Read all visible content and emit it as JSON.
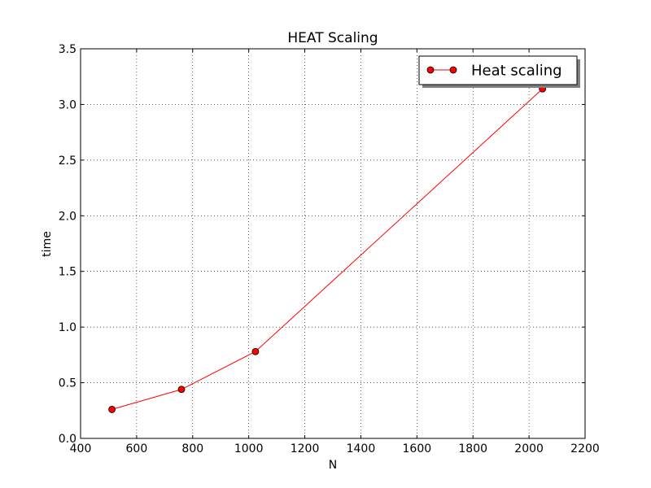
{
  "chart_data": {
    "type": "line",
    "title": "HEAT Scaling",
    "xlabel": "N",
    "ylabel": "time",
    "xlim": [
      400,
      2200
    ],
    "ylim": [
      0,
      3.5
    ],
    "x_ticks": [
      400,
      600,
      800,
      1000,
      1200,
      1400,
      1600,
      1800,
      2000,
      2200
    ],
    "y_ticks": [
      0,
      0.5,
      1,
      1.5,
      2,
      2.5,
      3,
      3.5
    ],
    "x_tick_labels": [
      "400",
      "600",
      "800",
      "1000",
      "1200",
      "1400",
      "1600",
      "1800",
      "2000",
      "2200"
    ],
    "y_tick_labels": [
      "0.0",
      "0.5",
      "1.0",
      "1.5",
      "2.0",
      "2.5",
      "3.0",
      "3.5"
    ],
    "grid": true,
    "legend_position": "top-right",
    "series": [
      {
        "name": "Heat scaling",
        "color": "#ff0000",
        "marker": "circle",
        "x": [
          512,
          760,
          1024,
          2048
        ],
        "y": [
          0.26,
          0.44,
          0.78,
          3.14
        ]
      }
    ]
  }
}
